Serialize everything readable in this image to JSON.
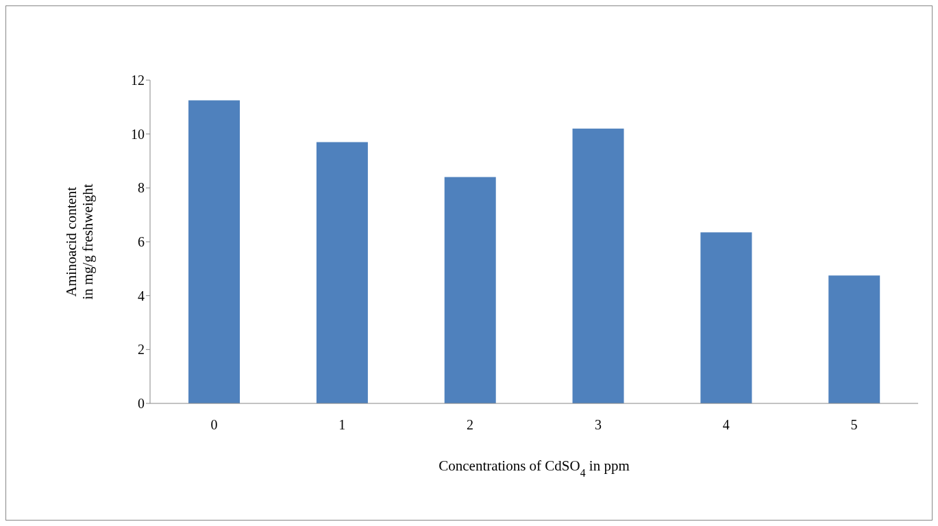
{
  "chart_data": {
    "type": "bar",
    "xlabel": "Concentrations of CdSO$_{4}$ in ppm",
    "ylabel": "Aminoacid content\nin mg/g freshweight",
    "categories": [
      "0",
      "1",
      "2",
      "3",
      "4",
      "5"
    ],
    "values": [
      11.25,
      9.7,
      8.4,
      10.2,
      6.35,
      4.75
    ],
    "color": "#4f81bd",
    "ylim": [
      0,
      12
    ],
    "yticks": [
      0,
      2,
      4,
      6,
      8,
      10,
      12
    ],
    "grid": false,
    "legend": false
  }
}
